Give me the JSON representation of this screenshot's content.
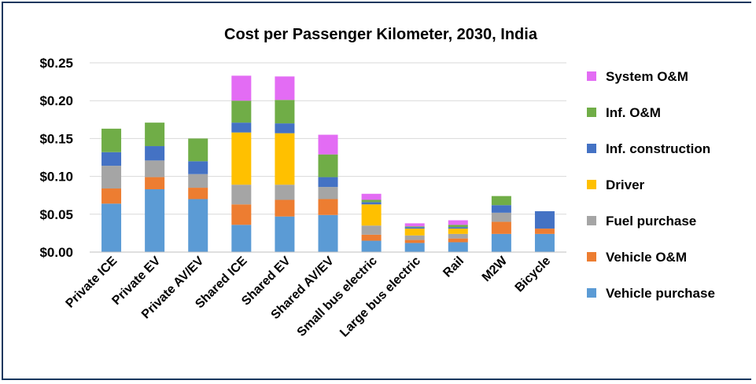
{
  "chart_data": {
    "type": "bar",
    "stacked": true,
    "title": "Cost per Passenger Kilometer, 2030, India",
    "xlabel": "",
    "ylabel": "",
    "ylim": [
      0,
      0.25
    ],
    "yticks": [
      "$0.00",
      "$0.05",
      "$0.10",
      "$0.15",
      "$0.20",
      "$0.25"
    ],
    "ytick_values": [
      0,
      0.05,
      0.1,
      0.15,
      0.2,
      0.25
    ],
    "grid": true,
    "legend_position": "right",
    "categories": [
      "Private ICE",
      "Private EV",
      "Private AV/EV",
      "Shared ICE",
      "Shared EV",
      "Shared AV/EV",
      "Small bus electric",
      "Large bus electric",
      "Rail",
      "M2W",
      "Bicycle"
    ],
    "series": [
      {
        "name": "Vehicle purchase",
        "color": "#5b9bd5",
        "values": [
          0.064,
          0.083,
          0.07,
          0.036,
          0.047,
          0.049,
          0.015,
          0.012,
          0.013,
          0.024,
          0.024
        ]
      },
      {
        "name": "Vehicle O&M",
        "color": "#ed7d31",
        "values": [
          0.02,
          0.016,
          0.015,
          0.027,
          0.022,
          0.021,
          0.008,
          0.004,
          0.005,
          0.016,
          0.007
        ]
      },
      {
        "name": "Fuel purchase",
        "color": "#a5a5a5",
        "values": [
          0.03,
          0.022,
          0.018,
          0.026,
          0.02,
          0.016,
          0.012,
          0.006,
          0.006,
          0.012,
          0.0
        ]
      },
      {
        "name": "Driver",
        "color": "#ffc000",
        "values": [
          0.0,
          0.0,
          0.0,
          0.069,
          0.068,
          0.0,
          0.028,
          0.009,
          0.007,
          0.0,
          0.0
        ]
      },
      {
        "name": "Inf. construction",
        "color": "#4472c4",
        "values": [
          0.018,
          0.019,
          0.017,
          0.013,
          0.013,
          0.013,
          0.003,
          0.002,
          0.002,
          0.01,
          0.023
        ]
      },
      {
        "name": "Inf. O&M",
        "color": "#70ad47",
        "values": [
          0.031,
          0.031,
          0.03,
          0.029,
          0.031,
          0.03,
          0.003,
          0.001,
          0.003,
          0.012,
          0.0
        ]
      },
      {
        "name": "System O&M",
        "color": "#e36cf4",
        "values": [
          0.0,
          0.0,
          0.0,
          0.033,
          0.031,
          0.026,
          0.008,
          0.004,
          0.006,
          0.0,
          0.0
        ]
      }
    ],
    "legend_order": [
      "System O&M",
      "Inf. O&M",
      "Inf. construction",
      "Driver",
      "Fuel purchase",
      "Vehicle O&M",
      "Vehicle purchase"
    ]
  }
}
